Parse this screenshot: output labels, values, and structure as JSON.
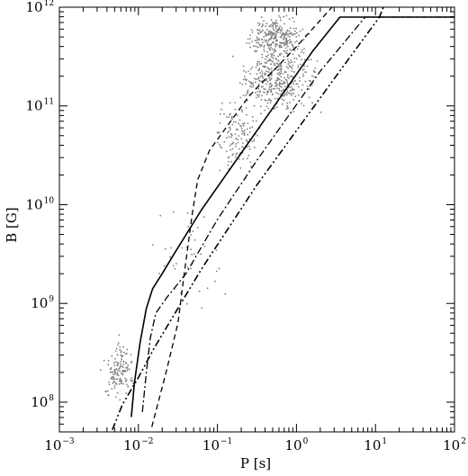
{
  "chart_data": {
    "type": "scatter",
    "title": "",
    "xlabel": "P [s]",
    "ylabel": "B [G]",
    "xscale": "log",
    "yscale": "log",
    "xlim": [
      0.001,
      100
    ],
    "ylim": [
      50000000,
      1000000000000
    ],
    "grid": false,
    "legend": "none",
    "x_ticks": [
      {
        "base": "10",
        "exp": "−3",
        "value": 0.001
      },
      {
        "base": "10",
        "exp": "−2",
        "value": 0.01
      },
      {
        "base": "10",
        "exp": "−1",
        "value": 0.1
      },
      {
        "base": "10",
        "exp": "0",
        "value": 1
      },
      {
        "base": "10",
        "exp": "1",
        "value": 10
      },
      {
        "base": "10",
        "exp": "2",
        "value": 100
      }
    ],
    "y_ticks": [
      {
        "base": "10",
        "exp": "8",
        "value": 100000000
      },
      {
        "base": "10",
        "exp": "9",
        "value": 1000000000
      },
      {
        "base": "10",
        "exp": "10",
        "value": 10000000000
      },
      {
        "base": "10",
        "exp": "11",
        "value": 100000000000
      },
      {
        "base": "10",
        "exp": "12",
        "value": 1000000000000
      }
    ],
    "colors": {
      "points": "#7f7f7f",
      "lines": "#000000"
    },
    "scatter_clusters": [
      {
        "name": "ms-cluster",
        "n": 140,
        "logP": [
          -2.5,
          -2.0
        ],
        "logB": [
          7.9,
          8.7
        ],
        "seed": 11
      },
      {
        "name": "young",
        "n": 260,
        "logP": [
          -0.7,
          0.2
        ],
        "logB": [
          11.4,
          12.0
        ],
        "seed": 23
      },
      {
        "name": "mid",
        "n": 420,
        "logP": [
          -0.9,
          0.4
        ],
        "logB": [
          10.8,
          11.8
        ],
        "seed": 37
      },
      {
        "name": "spread",
        "n": 130,
        "logP": [
          -1.1,
          -0.4
        ],
        "logB": [
          10.2,
          11.2
        ],
        "seed": 41
      },
      {
        "name": "valley",
        "n": 40,
        "logP": [
          -2.0,
          -0.8
        ],
        "logB": [
          8.8,
          10.3
        ],
        "seed": 53
      }
    ],
    "series": [
      {
        "style": "solid",
        "width": 1.6,
        "points": [
          [
            -2.09,
            7.85
          ],
          [
            -2.05,
            8.2
          ],
          [
            -1.98,
            8.6
          ],
          [
            -1.9,
            8.95
          ],
          [
            -1.82,
            9.15
          ],
          [
            -1.7,
            9.3
          ],
          [
            -1.55,
            9.5
          ],
          [
            -1.2,
            9.95
          ],
          [
            -0.5,
            10.75
          ],
          [
            0.2,
            11.55
          ],
          [
            0.55,
            11.9
          ],
          [
            2.0,
            11.9
          ]
        ]
      },
      {
        "style": "dashed",
        "width": 1.3,
        "points": [
          [
            -1.83,
            7.75
          ],
          [
            -1.65,
            8.3
          ],
          [
            -1.5,
            8.8
          ],
          [
            -1.42,
            9.3
          ],
          [
            -1.32,
            9.9
          ],
          [
            -1.25,
            10.25
          ],
          [
            -1.1,
            10.55
          ],
          [
            -0.6,
            11.1
          ],
          [
            0.0,
            11.6
          ],
          [
            0.45,
            12.0
          ]
        ]
      },
      {
        "style": "dashdot",
        "width": 1.3,
        "points": [
          [
            -1.95,
            7.9
          ],
          [
            -1.9,
            8.3
          ],
          [
            -1.85,
            8.65
          ],
          [
            -1.78,
            8.9
          ],
          [
            -1.65,
            9.05
          ],
          [
            -1.4,
            9.3
          ],
          [
            -1.0,
            9.85
          ],
          [
            -0.5,
            10.45
          ],
          [
            0.3,
            11.35
          ],
          [
            0.87,
            11.9
          ],
          [
            2.0,
            11.9
          ]
        ]
      },
      {
        "style": "dashdotdot",
        "width": 1.6,
        "points": [
          [
            -2.33,
            7.72
          ],
          [
            -2.2,
            7.98
          ],
          [
            -2.0,
            8.25
          ],
          [
            -1.8,
            8.55
          ],
          [
            -1.5,
            8.95
          ],
          [
            -1.2,
            9.35
          ],
          [
            -0.5,
            10.2
          ],
          [
            0.5,
            11.3
          ],
          [
            1.05,
            11.9
          ],
          [
            1.1,
            12.0
          ]
        ]
      }
    ]
  }
}
